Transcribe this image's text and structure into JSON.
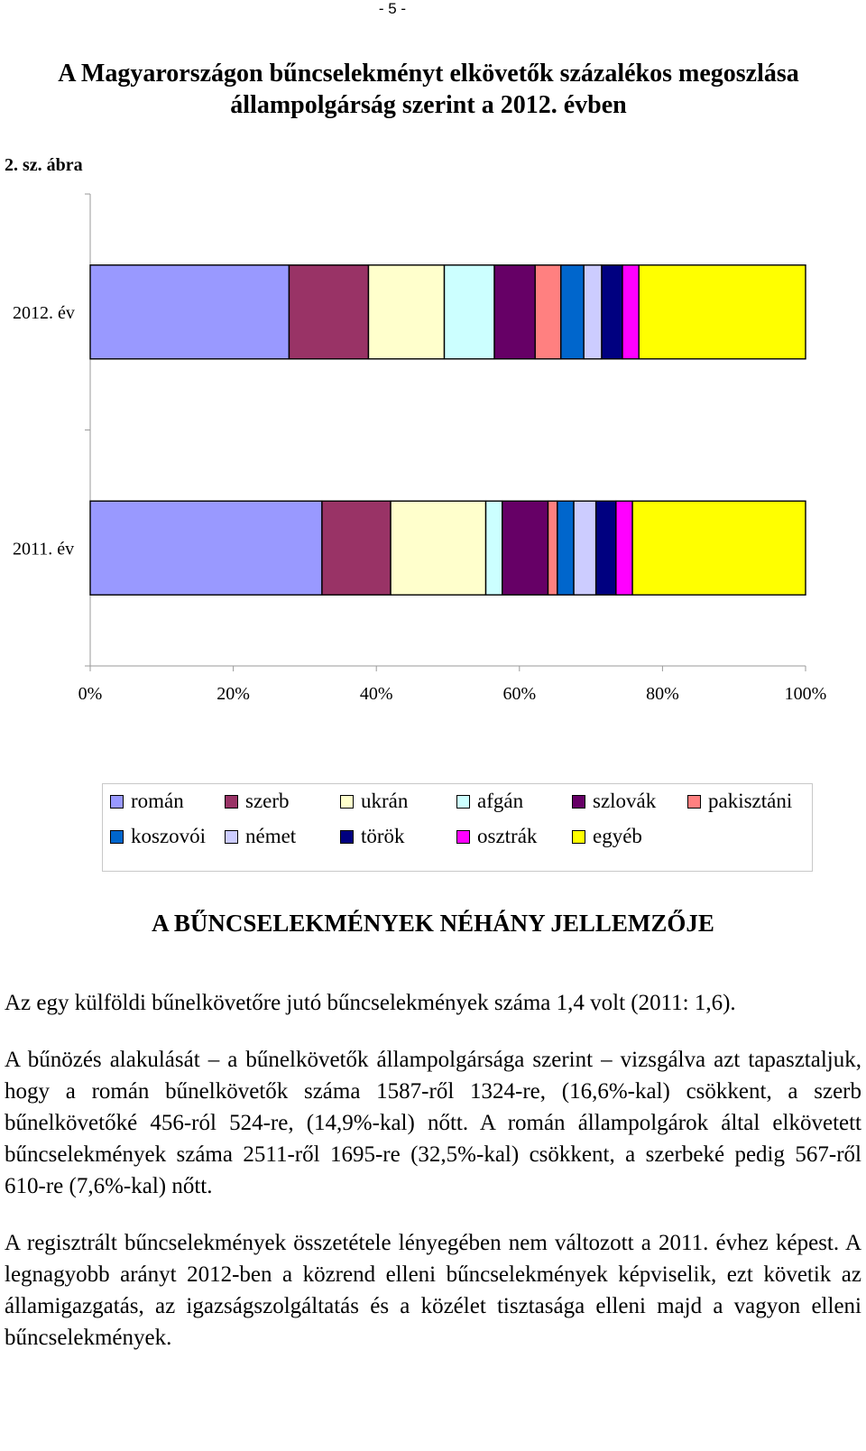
{
  "page_number": "- 5 -",
  "figure": {
    "title_line1": "A Magyarországon bűncselekményt elkövetők százalékos megoszlása",
    "title_line2": "állampolgárság szerint a 2012. évben",
    "number": "2. sz. ábra"
  },
  "chart_data": {
    "type": "bar",
    "orientation": "horizontal",
    "stacked": "percent",
    "categories": [
      "2012. év",
      "2011. év"
    ],
    "xlim": [
      0,
      100
    ],
    "x_ticks": [
      "0%",
      "20%",
      "40%",
      "60%",
      "80%",
      "100%"
    ],
    "grid": false,
    "legend_position": "bottom",
    "series": [
      {
        "name": "román",
        "color": "#9999FF",
        "values": [
          27.8,
          32.4
        ]
      },
      {
        "name": "szerb",
        "color": "#993366",
        "values": [
          11.1,
          9.6
        ]
      },
      {
        "name": "ukrán",
        "color": "#FFFFCC",
        "values": [
          10.6,
          13.3
        ]
      },
      {
        "name": "afgán",
        "color": "#CCFFFF",
        "values": [
          7.0,
          2.3
        ]
      },
      {
        "name": "szlovák",
        "color": "#660066",
        "values": [
          5.7,
          6.4
        ]
      },
      {
        "name": "pakisztáni",
        "color": "#FF8080",
        "values": [
          3.6,
          1.3
        ]
      },
      {
        "name": "koszovói",
        "color": "#0066CC",
        "values": [
          3.2,
          2.3
        ]
      },
      {
        "name": "német",
        "color": "#CCCCFF",
        "values": [
          2.5,
          3.1
        ]
      },
      {
        "name": "török",
        "color": "#000080",
        "values": [
          2.9,
          2.8
        ]
      },
      {
        "name": "osztrák",
        "color": "#FF00FF",
        "values": [
          2.3,
          2.3
        ]
      },
      {
        "name": "egyéb",
        "color": "#FFFF00",
        "values": [
          23.3,
          24.2
        ]
      }
    ]
  },
  "section": {
    "heading": "A BŰNCSELEKMÉNYEK NÉHÁNY JELLEMZŐJE"
  },
  "paragraphs": [
    "Az egy külföldi bűnelkövetőre jutó bűncselekmények száma 1,4 volt (2011: 1,6).",
    "A bűnözés alakulását – a bűnelkövetők állampolgársága szerint – vizsgálva azt tapasztaljuk, hogy a román bűnelkövetők száma 1587-ről 1324-re, (16,6%-kal) csökkent, a szerb bűnelkövetőké 456-ról 524-re, (14,9%-kal) nőtt. A román állampolgárok által elkövetett bűncselekmények száma 2511-ről 1695-re (32,5%-kal) csökkent, a szerbeké pedig 567-ről 610-re (7,6%-kal) nőtt.",
    "A regisztrált bűncselekmények összetétele lényegében nem változott a 2011. évhez képest. A legnagyobb arányt 2012-ben a közrend elleni bűncselekmények képviselik, ezt követik az államigazgatás, az igazságszolgáltatás és a közélet tisztasága elleni majd a vagyon elleni bűncselekmények."
  ]
}
